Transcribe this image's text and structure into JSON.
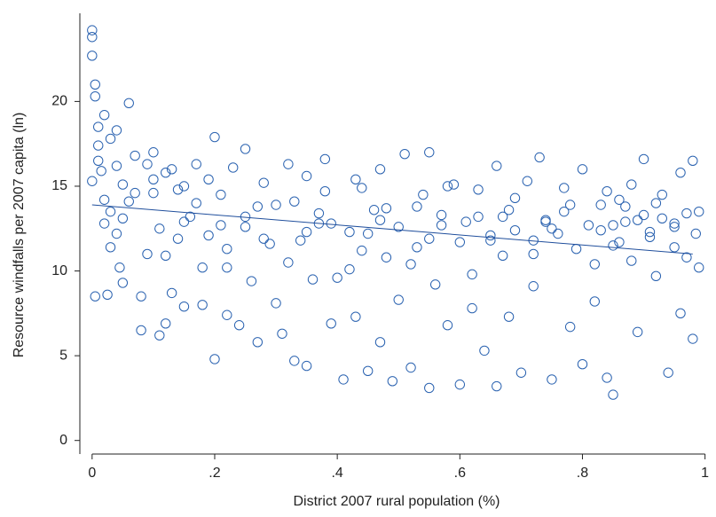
{
  "chart_data": {
    "type": "scatter",
    "x_label": "District 2007 rural population (%)",
    "y_label": "Resource windfalls per 2007 capita (ln)",
    "xlim": [
      -0.02,
      1.015
    ],
    "ylim": [
      -0.8,
      25.2
    ],
    "xticks": [
      0,
      {
        "value": 0.2,
        "label": ".2"
      },
      {
        "value": 0.4,
        "label": ".4"
      },
      {
        "value": 0.6,
        "label": ".6"
      },
      {
        "value": 0.8,
        "label": ".8"
      },
      1
    ],
    "yticks": [
      0,
      5,
      10,
      15,
      20
    ],
    "grid": false,
    "series": [
      {
        "type": "scatter",
        "color": "#2a62b0",
        "x": [
          0.0,
          0.0,
          0.0,
          0.005,
          0.005,
          0.01,
          0.01,
          0.015,
          0.02,
          0.02,
          0.0,
          0.01,
          0.02,
          0.03,
          0.03,
          0.04,
          0.04,
          0.05,
          0.05,
          0.06,
          0.005,
          0.025,
          0.03,
          0.045,
          0.06,
          0.07,
          0.08,
          0.09,
          0.1,
          0.1,
          0.11,
          0.11,
          0.12,
          0.13,
          0.14,
          0.15,
          0.15,
          0.16,
          0.17,
          0.18,
          0.08,
          0.09,
          0.12,
          0.14,
          0.18,
          0.19,
          0.2,
          0.2,
          0.21,
          0.22,
          0.22,
          0.23,
          0.24,
          0.25,
          0.25,
          0.26,
          0.27,
          0.28,
          0.29,
          0.3,
          0.3,
          0.31,
          0.32,
          0.33,
          0.34,
          0.35,
          0.35,
          0.36,
          0.37,
          0.38,
          0.38,
          0.39,
          0.4,
          0.41,
          0.42,
          0.43,
          0.43,
          0.44,
          0.45,
          0.46,
          0.47,
          0.47,
          0.48,
          0.49,
          0.5,
          0.5,
          0.51,
          0.52,
          0.53,
          0.54,
          0.55,
          0.55,
          0.56,
          0.57,
          0.58,
          0.59,
          0.6,
          0.6,
          0.61,
          0.62,
          0.63,
          0.64,
          0.65,
          0.66,
          0.66,
          0.67,
          0.68,
          0.68,
          0.69,
          0.7,
          0.71,
          0.72,
          0.72,
          0.73,
          0.74,
          0.75,
          0.76,
          0.77,
          0.78,
          0.79,
          0.8,
          0.8,
          0.81,
          0.82,
          0.83,
          0.84,
          0.85,
          0.85,
          0.86,
          0.87,
          0.88,
          0.88,
          0.89,
          0.9,
          0.9,
          0.91,
          0.92,
          0.93,
          0.94,
          0.95,
          0.96,
          0.96,
          0.97,
          0.97,
          0.98,
          0.98,
          0.99,
          0.99,
          0.985,
          0.95,
          0.05,
          0.15,
          0.25,
          0.35,
          0.45,
          0.55,
          0.65,
          0.75,
          0.85,
          0.95,
          0.07,
          0.17,
          0.27,
          0.37,
          0.47,
          0.57,
          0.67,
          0.77,
          0.87,
          0.93,
          0.12,
          0.22,
          0.32,
          0.42,
          0.52,
          0.62,
          0.72,
          0.82,
          0.84,
          0.91,
          0.04,
          0.13,
          0.21,
          0.33,
          0.44,
          0.53,
          0.63,
          0.74,
          0.83,
          0.89,
          0.1,
          0.19,
          0.28,
          0.39,
          0.48,
          0.58,
          0.69,
          0.78,
          0.86,
          0.92
        ],
        "values": [
          24.2,
          23.8,
          22.7,
          21.0,
          20.3,
          18.5,
          17.4,
          15.9,
          14.2,
          12.8,
          15.3,
          16.5,
          19.2,
          17.8,
          13.5,
          18.3,
          16.2,
          15.1,
          9.3,
          19.9,
          8.5,
          8.6,
          11.4,
          10.2,
          14.1,
          16.8,
          8.5,
          16.3,
          17.0,
          14.6,
          6.2,
          12.5,
          15.8,
          8.7,
          11.9,
          7.9,
          15.0,
          13.2,
          16.3,
          10.2,
          6.5,
          11.0,
          6.9,
          14.8,
          8.0,
          15.4,
          4.8,
          17.9,
          12.7,
          10.2,
          7.4,
          16.1,
          6.8,
          13.2,
          17.2,
          9.4,
          5.8,
          15.2,
          11.6,
          8.1,
          13.9,
          6.3,
          16.3,
          4.7,
          11.8,
          15.6,
          4.4,
          9.5,
          12.8,
          14.7,
          16.6,
          6.9,
          9.6,
          3.6,
          12.3,
          7.3,
          15.4,
          11.2,
          4.1,
          13.6,
          5.8,
          16.0,
          10.8,
          3.5,
          12.6,
          8.3,
          16.9,
          4.3,
          11.4,
          14.5,
          3.1,
          17.0,
          9.2,
          13.3,
          6.8,
          15.1,
          3.3,
          11.7,
          12.9,
          7.8,
          14.8,
          5.3,
          12.1,
          3.2,
          16.2,
          10.9,
          7.3,
          13.6,
          12.4,
          4.0,
          15.3,
          11.8,
          9.1,
          16.7,
          13.0,
          3.6,
          12.2,
          14.9,
          6.7,
          11.3,
          4.5,
          16.0,
          12.7,
          8.2,
          13.9,
          3.7,
          11.5,
          2.7,
          14.2,
          12.9,
          15.1,
          10.6,
          6.4,
          13.3,
          16.6,
          12.0,
          9.7,
          14.5,
          4.0,
          12.6,
          7.5,
          15.8,
          13.4,
          10.8,
          16.5,
          6.0,
          13.5,
          10.2,
          12.2,
          11.4,
          13.1,
          12.9,
          12.6,
          12.3,
          12.2,
          11.9,
          11.8,
          12.5,
          12.7,
          12.8,
          14.6,
          14.0,
          13.8,
          13.4,
          13.0,
          12.7,
          13.2,
          13.5,
          13.8,
          13.1,
          10.9,
          11.3,
          10.5,
          10.1,
          10.4,
          9.8,
          11.0,
          10.4,
          14.7,
          12.3,
          12.2,
          16.0,
          14.5,
          14.1,
          14.9,
          13.8,
          13.2,
          12.9,
          12.4,
          13.0,
          15.4,
          12.1,
          11.9,
          12.8,
          13.7,
          15.0,
          14.3,
          13.9,
          11.7,
          14.0
        ]
      },
      {
        "type": "line",
        "color": "#1f4e9c",
        "x": [
          0,
          0.98
        ],
        "values": [
          13.9,
          11.0
        ]
      }
    ]
  }
}
